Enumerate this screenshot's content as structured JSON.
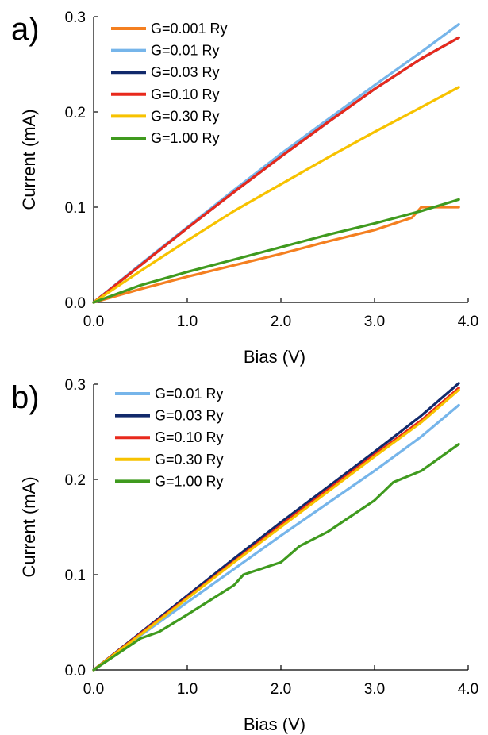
{
  "chart_data": [
    {
      "type": "line",
      "panel_label": "a)",
      "xlabel": "Bias (V)",
      "ylabel": "Current (mA)",
      "xlim": [
        0,
        4.0
      ],
      "ylim": [
        0,
        0.3
      ],
      "xticks": [
        "0.0",
        "1.0",
        "2.0",
        "3.0",
        "4.0"
      ],
      "yticks": [
        "0.0",
        "0.1",
        "0.2",
        "0.3"
      ],
      "grid": false,
      "legend_position": "top-left",
      "series": [
        {
          "name": "G=0.001 Ry",
          "color": "#f47f20",
          "x": [
            0,
            0.5,
            1.0,
            1.5,
            2.0,
            2.5,
            3.0,
            3.4,
            3.5,
            3.9
          ],
          "y": [
            0,
            0.014,
            0.027,
            0.039,
            0.051,
            0.064,
            0.076,
            0.089,
            0.1,
            0.1
          ]
        },
        {
          "name": "G=0.01 Ry",
          "color": "#76b5ea",
          "x": [
            0,
            0.5,
            1.0,
            1.5,
            2.0,
            2.5,
            3.0,
            3.5,
            3.9
          ],
          "y": [
            0,
            0.04,
            0.079,
            0.118,
            0.156,
            0.192,
            0.228,
            0.263,
            0.292
          ]
        },
        {
          "name": "G=0.03 Ry",
          "color": "#11296b",
          "x": [
            0,
            0.5,
            1.0,
            1.5,
            2.0,
            2.5,
            3.0,
            3.5,
            3.9
          ],
          "y": [
            0,
            0.039,
            0.078,
            0.116,
            0.153,
            0.189,
            0.224,
            0.256,
            0.278
          ]
        },
        {
          "name": "G=0.10 Ry",
          "color": "#e8291c",
          "x": [
            0,
            0.5,
            1.0,
            1.5,
            2.0,
            2.5,
            3.0,
            3.5,
            3.9
          ],
          "y": [
            0,
            0.039,
            0.078,
            0.116,
            0.153,
            0.189,
            0.224,
            0.256,
            0.278
          ]
        },
        {
          "name": "G=0.30 Ry",
          "color": "#f7c200",
          "x": [
            0,
            0.5,
            1.0,
            1.5,
            2.0,
            2.5,
            3.0,
            3.5,
            3.9
          ],
          "y": [
            0,
            0.033,
            0.065,
            0.096,
            0.124,
            0.152,
            0.179,
            0.205,
            0.226
          ]
        },
        {
          "name": "G=1.00 Ry",
          "color": "#3f9a1e",
          "x": [
            0,
            0.5,
            1.0,
            1.5,
            2.0,
            2.5,
            3.0,
            3.5,
            3.9
          ],
          "y": [
            0,
            0.018,
            0.032,
            0.045,
            0.058,
            0.071,
            0.083,
            0.096,
            0.108
          ]
        }
      ]
    },
    {
      "type": "line",
      "panel_label": "b)",
      "xlabel": "Bias (V)",
      "ylabel": "Current (mA)",
      "xlim": [
        0,
        4.0
      ],
      "ylim": [
        0,
        0.3
      ],
      "xticks": [
        "0.0",
        "1.0",
        "2.0",
        "3.0",
        "4.0"
      ],
      "yticks": [
        "0.0",
        "0.1",
        "0.2",
        "0.3"
      ],
      "grid": false,
      "legend_position": "top-left",
      "series": [
        {
          "name": "G=0.01 Ry",
          "color": "#76b5ea",
          "x": [
            0,
            0.5,
            1.0,
            1.5,
            2.0,
            2.5,
            3.0,
            3.5,
            3.9
          ],
          "y": [
            0,
            0.036,
            0.071,
            0.106,
            0.141,
            0.175,
            0.209,
            0.245,
            0.278
          ]
        },
        {
          "name": "G=0.03 Ry",
          "color": "#11296b",
          "x": [
            0,
            0.5,
            1.0,
            1.5,
            2.0,
            2.5,
            3.0,
            3.5,
            3.9
          ],
          "y": [
            0,
            0.039,
            0.078,
            0.117,
            0.155,
            0.192,
            0.229,
            0.267,
            0.301
          ]
        },
        {
          "name": "G=0.10 Ry",
          "color": "#e8291c",
          "x": [
            0,
            0.5,
            1.0,
            1.5,
            2.0,
            2.5,
            3.0,
            3.5,
            3.9
          ],
          "y": [
            0,
            0.038,
            0.076,
            0.114,
            0.152,
            0.189,
            0.226,
            0.262,
            0.296
          ]
        },
        {
          "name": "G=0.30 Ry",
          "color": "#f7c200",
          "x": [
            0,
            0.5,
            1.0,
            1.5,
            2.0,
            2.5,
            3.0,
            3.5,
            3.9
          ],
          "y": [
            0,
            0.037,
            0.075,
            0.113,
            0.15,
            0.187,
            0.224,
            0.26,
            0.294
          ]
        },
        {
          "name": "G=1.00 Ry",
          "color": "#3f9a1e",
          "x": [
            0,
            0.5,
            0.7,
            1.0,
            1.5,
            1.6,
            2.0,
            2.2,
            2.5,
            3.0,
            3.2,
            3.5,
            3.9
          ],
          "y": [
            0,
            0.033,
            0.04,
            0.058,
            0.089,
            0.1,
            0.113,
            0.13,
            0.145,
            0.178,
            0.197,
            0.209,
            0.237
          ]
        }
      ]
    }
  ]
}
